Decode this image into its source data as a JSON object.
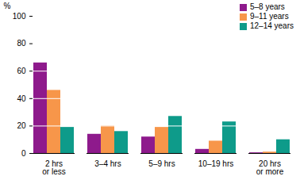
{
  "chart_data": {
    "type": "bar",
    "categories": [
      "2 hrs\nor less",
      "3–4 hrs",
      "5–9 hrs",
      "10–19 hrs",
      "20 hrs\nor more"
    ],
    "series": [
      {
        "name": "5–8 years",
        "color": "#8e1a8c",
        "values": [
          66,
          14,
          12,
          3,
          0.5
        ]
      },
      {
        "name": "9–11 years",
        "color": "#f7964a",
        "values": [
          46,
          20,
          19,
          9,
          1
        ]
      },
      {
        "name": "12–14 years",
        "color": "#0e9b8a",
        "values": [
          19,
          16,
          27,
          23,
          10
        ]
      }
    ],
    "y_label": "%",
    "ylim": [
      0,
      100
    ],
    "yticks": [
      0,
      20,
      40,
      60,
      80,
      100
    ],
    "grid": true,
    "legend": "top-right"
  }
}
